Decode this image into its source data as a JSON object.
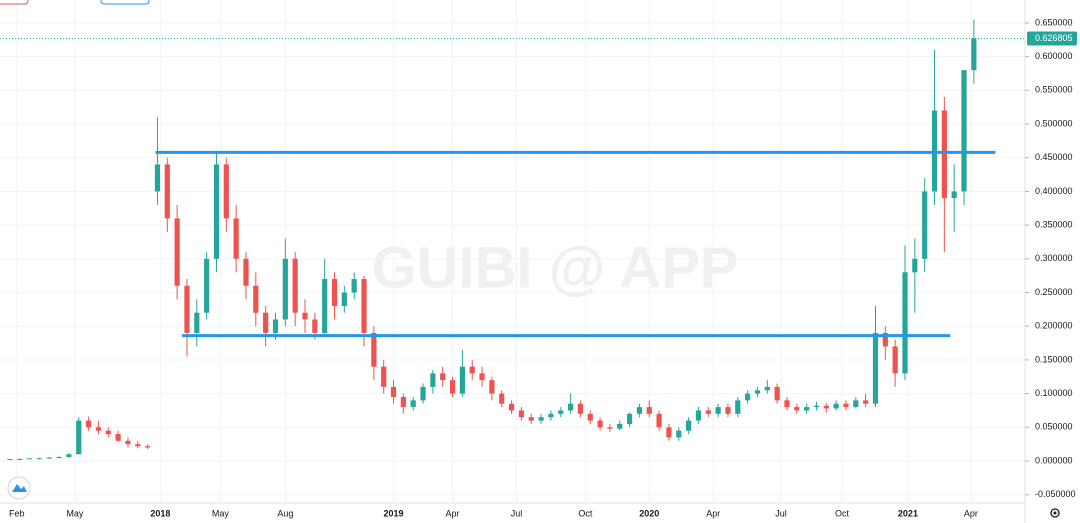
{
  "chart_data": {
    "type": "candlestick",
    "watermark": "GUIBI @ APP",
    "open": [
      0.002,
      0.003,
      0.003,
      0.004,
      0.004,
      0.005,
      0.006,
      0.01,
      0.06,
      0.05,
      0.045,
      0.04,
      0.03,
      0.025,
      0.022,
      0.4,
      0.44,
      0.36,
      0.26,
      0.19,
      0.22,
      0.3,
      0.44,
      0.36,
      0.3,
      0.26,
      0.22,
      0.19,
      0.21,
      0.3,
      0.22,
      0.21,
      0.19,
      0.27,
      0.23,
      0.25,
      0.27,
      0.19,
      0.14,
      0.11,
      0.095,
      0.08,
      0.09,
      0.11,
      0.13,
      0.12,
      0.1,
      0.14,
      0.13,
      0.12,
      0.1,
      0.085,
      0.075,
      0.065,
      0.06,
      0.065,
      0.07,
      0.075,
      0.085,
      0.07,
      0.06,
      0.05,
      0.048,
      0.055,
      0.07,
      0.08,
      0.07,
      0.05,
      0.035,
      0.045,
      0.06,
      0.075,
      0.07,
      0.08,
      0.07,
      0.09,
      0.1,
      0.105,
      0.11,
      0.09,
      0.08,
      0.075,
      0.08,
      0.082,
      0.078,
      0.085,
      0.08,
      0.09,
      0.085,
      0.19,
      0.17,
      0.13,
      0.28,
      0.3,
      0.4,
      0.52,
      0.39,
      0.4,
      0.58
    ],
    "high": [
      0.003,
      0.004,
      0.004,
      0.005,
      0.006,
      0.007,
      0.012,
      0.065,
      0.066,
      0.06,
      0.05,
      0.045,
      0.035,
      0.03,
      0.025,
      0.51,
      0.45,
      0.38,
      0.27,
      0.24,
      0.31,
      0.46,
      0.45,
      0.38,
      0.31,
      0.28,
      0.23,
      0.22,
      0.33,
      0.31,
      0.24,
      0.22,
      0.3,
      0.28,
      0.26,
      0.28,
      0.275,
      0.2,
      0.15,
      0.12,
      0.1,
      0.095,
      0.115,
      0.135,
      0.14,
      0.125,
      0.165,
      0.15,
      0.14,
      0.125,
      0.105,
      0.09,
      0.08,
      0.07,
      0.07,
      0.075,
      0.08,
      0.1,
      0.09,
      0.075,
      0.065,
      0.055,
      0.06,
      0.072,
      0.085,
      0.09,
      0.075,
      0.055,
      0.05,
      0.065,
      0.08,
      0.08,
      0.085,
      0.085,
      0.095,
      0.105,
      0.11,
      0.12,
      0.115,
      0.095,
      0.085,
      0.085,
      0.088,
      0.086,
      0.09,
      0.09,
      0.095,
      0.1,
      0.23,
      0.2,
      0.18,
      0.32,
      0.33,
      0.42,
      0.61,
      0.54,
      0.44,
      0.58,
      0.655
    ],
    "low": [
      0.002,
      0.003,
      0.003,
      0.003,
      0.004,
      0.004,
      0.005,
      0.01,
      0.045,
      0.04,
      0.035,
      0.028,
      0.02,
      0.019,
      0.018,
      0.38,
      0.34,
      0.24,
      0.155,
      0.17,
      0.21,
      0.28,
      0.34,
      0.28,
      0.24,
      0.2,
      0.17,
      0.18,
      0.2,
      0.2,
      0.19,
      0.18,
      0.185,
      0.21,
      0.22,
      0.24,
      0.17,
      0.12,
      0.1,
      0.085,
      0.07,
      0.075,
      0.085,
      0.1,
      0.11,
      0.095,
      0.095,
      0.12,
      0.11,
      0.09,
      0.08,
      0.07,
      0.06,
      0.055,
      0.055,
      0.06,
      0.065,
      0.07,
      0.065,
      0.055,
      0.045,
      0.043,
      0.045,
      0.05,
      0.065,
      0.065,
      0.045,
      0.03,
      0.03,
      0.04,
      0.055,
      0.065,
      0.065,
      0.065,
      0.065,
      0.085,
      0.095,
      0.1,
      0.085,
      0.075,
      0.07,
      0.07,
      0.075,
      0.072,
      0.075,
      0.075,
      0.078,
      0.08,
      0.08,
      0.15,
      0.11,
      0.12,
      0.22,
      0.28,
      0.38,
      0.31,
      0.34,
      0.38,
      0.56
    ],
    "close": [
      0.003,
      0.003,
      0.004,
      0.004,
      0.005,
      0.006,
      0.01,
      0.06,
      0.05,
      0.045,
      0.04,
      0.03,
      0.025,
      0.022,
      0.02,
      0.44,
      0.36,
      0.26,
      0.19,
      0.22,
      0.3,
      0.44,
      0.36,
      0.3,
      0.26,
      0.22,
      0.19,
      0.21,
      0.3,
      0.22,
      0.21,
      0.19,
      0.27,
      0.23,
      0.25,
      0.27,
      0.19,
      0.14,
      0.11,
      0.095,
      0.08,
      0.09,
      0.11,
      0.13,
      0.12,
      0.1,
      0.14,
      0.13,
      0.12,
      0.1,
      0.085,
      0.075,
      0.065,
      0.06,
      0.065,
      0.07,
      0.075,
      0.085,
      0.07,
      0.06,
      0.05,
      0.048,
      0.055,
      0.07,
      0.08,
      0.07,
      0.05,
      0.035,
      0.045,
      0.06,
      0.075,
      0.07,
      0.08,
      0.07,
      0.09,
      0.1,
      0.105,
      0.11,
      0.09,
      0.08,
      0.075,
      0.08,
      0.082,
      0.078,
      0.085,
      0.08,
      0.09,
      0.085,
      0.19,
      0.17,
      0.13,
      0.28,
      0.3,
      0.4,
      0.52,
      0.39,
      0.4,
      0.58,
      0.626805
    ],
    "up_color": "#26a69a",
    "down_color": "#ef5350",
    "hlines": [
      {
        "y": 0.458,
        "x": [
          14.8,
          100.2
        ]
      },
      {
        "y": 0.186,
        "x": [
          17.5,
          95.6
        ]
      }
    ],
    "hline_color": "#2196f3",
    "xlim": [
      -0.5,
      103.2
    ],
    "ylim": [
      -0.0623,
      0.684
    ],
    "xticks": [
      {
        "value": 0.7,
        "label": "Feb"
      },
      {
        "value": 6.6,
        "label": "May"
      },
      {
        "value": 15.3,
        "label": "2018"
      },
      {
        "value": 21.4,
        "label": "May"
      },
      {
        "value": 28,
        "label": "Aug"
      },
      {
        "value": 39,
        "label": "2019"
      },
      {
        "value": 45,
        "label": "Apr"
      },
      {
        "value": 51.5,
        "label": "Jul"
      },
      {
        "value": 58.5,
        "label": "Oct"
      },
      {
        "value": 65,
        "label": "2020"
      },
      {
        "value": 71.5,
        "label": "Apr"
      },
      {
        "value": 78.4,
        "label": "Jul"
      },
      {
        "value": 84.6,
        "label": "Oct"
      },
      {
        "value": 91.3,
        "label": "2021"
      },
      {
        "value": 97.7,
        "label": "Apr"
      }
    ],
    "yticks": [
      {
        "value": -0.05,
        "label": "-0.050000"
      },
      {
        "value": 0,
        "label": "0.000000"
      },
      {
        "value": 0.05,
        "label": "0.050000"
      },
      {
        "value": 0.1,
        "label": "0.100000"
      },
      {
        "value": 0.15,
        "label": "0.150000"
      },
      {
        "value": 0.2,
        "label": "0.200000"
      },
      {
        "value": 0.25,
        "label": "0.250000"
      },
      {
        "value": 0.3,
        "label": "0.300000"
      },
      {
        "value": 0.35,
        "label": "0.350000"
      },
      {
        "value": 0.4,
        "label": "0.400000"
      },
      {
        "value": 0.45,
        "label": "0.450000"
      },
      {
        "value": 0.5,
        "label": "0.500000"
      },
      {
        "value": 0.55,
        "label": "0.550000"
      },
      {
        "value": 0.6,
        "label": "0.600000"
      },
      {
        "value": 0.65,
        "label": "0.650000"
      }
    ],
    "grid": true
  }
}
